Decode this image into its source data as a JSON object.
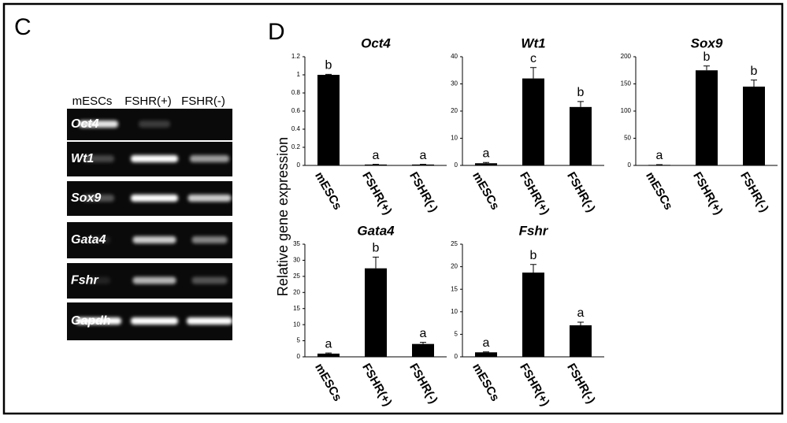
{
  "panel_c": {
    "label": "C",
    "lanes": [
      "mESCs",
      "FSHR(+)",
      "FSHR(-)"
    ],
    "genes": [
      "Oct4",
      "Wt1",
      "Sox9",
      "Gata4",
      "Fshr",
      "Gapdh"
    ]
  },
  "panel_d": {
    "label": "D",
    "y_label": "Relative gene expression"
  },
  "chart_data": [
    {
      "type": "bar",
      "title": "Oct4",
      "categories": [
        "mESCs",
        "FSHR(+)",
        "FSHR(-)"
      ],
      "values": [
        1.0,
        0.01,
        0.01
      ],
      "errors": [
        0.005,
        0.002,
        0.002
      ],
      "annotations": [
        "b",
        "a",
        "a"
      ],
      "color": "#000000",
      "ylim": [
        0,
        1.2
      ],
      "yticks": [
        0,
        0.2,
        0.4,
        0.6,
        0.8,
        1,
        1.2
      ]
    },
    {
      "type": "bar",
      "title": "Wt1",
      "categories": [
        "mESCs",
        "FSHR(+)",
        "FSHR(-)"
      ],
      "values": [
        0.8,
        32,
        21.5
      ],
      "errors": [
        0.3,
        4,
        2
      ],
      "annotations": [
        "a",
        "c",
        "b"
      ],
      "color": "#000000",
      "ylim": [
        0,
        40
      ],
      "yticks": [
        0,
        10,
        20,
        30,
        40
      ]
    },
    {
      "type": "bar",
      "title": "Sox9",
      "categories": [
        "mESCs",
        "FSHR(+)",
        "FSHR(-)"
      ],
      "values": [
        1,
        175,
        145
      ],
      "errors": [
        0.5,
        8,
        12
      ],
      "annotations": [
        "a",
        "b",
        "b"
      ],
      "color": "#000000",
      "ylim": [
        0,
        200
      ],
      "yticks": [
        0,
        50,
        100,
        150,
        200
      ]
    },
    {
      "type": "bar",
      "title": "Gata4",
      "categories": [
        "mESCs",
        "FSHR(+)",
        "FSHR(-)"
      ],
      "values": [
        1,
        27.5,
        4
      ],
      "errors": [
        0.2,
        3.5,
        0.5
      ],
      "annotations": [
        "a",
        "b",
        "a"
      ],
      "color": "#000000",
      "ylim": [
        0,
        35
      ],
      "yticks": [
        0,
        5,
        10,
        15,
        20,
        25,
        30,
        35
      ]
    },
    {
      "type": "bar",
      "title": "Fshr",
      "categories": [
        "mESCs",
        "FSHR(+)",
        "FSHR(-)"
      ],
      "values": [
        1,
        18.7,
        7
      ],
      "errors": [
        0.1,
        1.8,
        0.7
      ],
      "annotations": [
        "a",
        "b",
        "a"
      ],
      "color": "#000000",
      "ylim": [
        0,
        25
      ],
      "yticks": [
        0,
        5,
        10,
        15,
        20,
        25
      ]
    }
  ]
}
